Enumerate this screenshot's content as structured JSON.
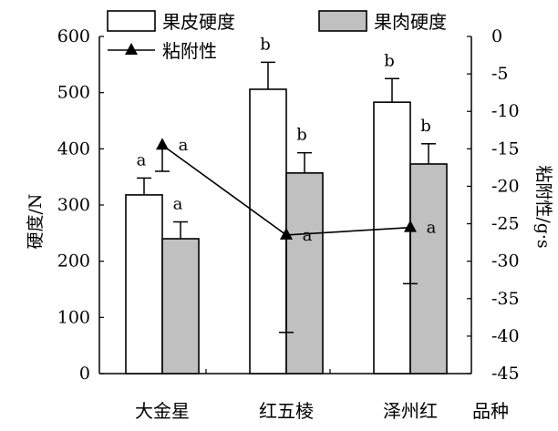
{
  "chart_data": {
    "type": "bar",
    "categories": [
      "大金星",
      "红五棱",
      "泽州红"
    ],
    "x_extra_label": "品种",
    "series": [
      {
        "name": "果皮硬度",
        "axis": "left",
        "kind": "bar",
        "color": "#ffffff",
        "values": [
          318,
          506,
          483
        ],
        "errors": [
          30,
          48,
          42
        ],
        "sig_labels": [
          "a",
          "b",
          "b"
        ]
      },
      {
        "name": "果肉硬度",
        "axis": "left",
        "kind": "bar",
        "color": "#c0c0c0",
        "values": [
          240,
          357,
          373
        ],
        "errors": [
          30,
          36,
          36
        ],
        "sig_labels": [
          "a",
          "b",
          "b"
        ]
      },
      {
        "name": "粘附性",
        "axis": "right",
        "kind": "line",
        "marker": "triangle",
        "values": [
          -14.5,
          -26.5,
          -25.5
        ],
        "errors": [
          3.5,
          13,
          7.5
        ],
        "sig_labels": [
          "a",
          "a",
          "a"
        ]
      }
    ],
    "ylabel": "硬度/N",
    "ylim": [
      0,
      600
    ],
    "yticks": [
      0,
      100,
      200,
      300,
      400,
      500,
      600
    ],
    "y2label": "粘附性/g·s",
    "y2lim": [
      -45,
      0
    ],
    "y2ticks": [
      0,
      -5,
      -10,
      -15,
      -20,
      -25,
      -30,
      -35,
      -40,
      -45
    ],
    "grid": false,
    "legend_position": "top"
  }
}
